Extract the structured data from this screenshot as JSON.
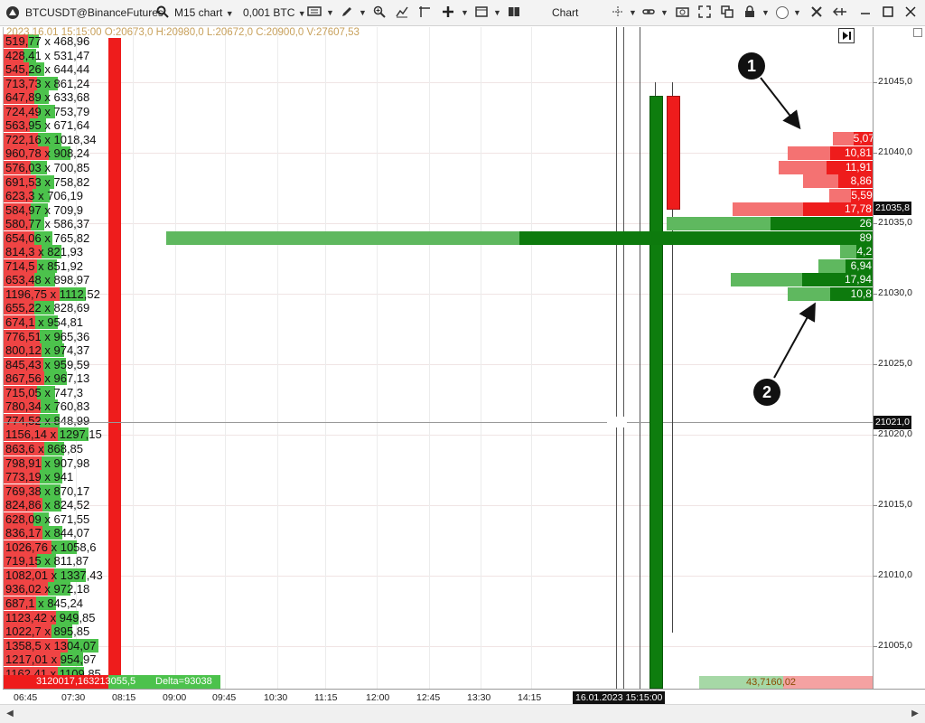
{
  "toolbar": {
    "symbol": "BTCUSDT@BinanceFutures",
    "timeframe": "M15 chart",
    "volume_step": "0,001 BTC",
    "title": "Chart"
  },
  "info_line": "2023.16.01 15:15:00 O:20673,0 H:20980,0 L:20672,0 C:20900,0 V:27607,53",
  "vertical_volume_rows": [
    {
      "label": "519,77 x 468,96",
      "red": 519.77,
      "green": 468.96
    },
    {
      "label": "428,41 x 531,47",
      "red": 428.41,
      "green": 531.47
    },
    {
      "label": "545,26 x 644,44",
      "red": 545.26,
      "green": 644.44
    },
    {
      "label": "713,73 x 861,24",
      "red": 713.73,
      "green": 861.24
    },
    {
      "label": "647,89 x 633,68",
      "red": 647.89,
      "green": 633.68
    },
    {
      "label": "724,49 x 753,79",
      "red": 724.49,
      "green": 753.79
    },
    {
      "label": "563,95 x 671,64",
      "red": 563.95,
      "green": 671.64
    },
    {
      "label": "722,16 x 1018,34",
      "red": 722.16,
      "green": 1018.34
    },
    {
      "label": "960,78 x 908,24",
      "red": 960.78,
      "green": 908.24
    },
    {
      "label": "576,03 x 700,85",
      "red": 576.03,
      "green": 700.85
    },
    {
      "label": "691,53 x 758,82",
      "red": 691.53,
      "green": 758.82
    },
    {
      "label": "623,3 x 706,19",
      "red": 623.3,
      "green": 706.19
    },
    {
      "label": "584,97 x 709,9",
      "red": 584.97,
      "green": 709.9
    },
    {
      "label": "580,77 x 586,37",
      "red": 580.77,
      "green": 586.37
    },
    {
      "label": "654,06 x 765,82",
      "red": 654.06,
      "green": 765.82
    },
    {
      "label": "814,3 x 821,93",
      "red": 814.3,
      "green": 821.93
    },
    {
      "label": "714,5 x 851,92",
      "red": 714.5,
      "green": 851.92
    },
    {
      "label": "653,48 x 898,97",
      "red": 653.48,
      "green": 898.97
    },
    {
      "label": "1196,75 x 1112,52",
      "red": 1196.75,
      "green": 1112.52
    },
    {
      "label": "655,22 x 828,69",
      "red": 655.22,
      "green": 828.69
    },
    {
      "label": "674,1 x 954,81",
      "red": 674.1,
      "green": 954.81
    },
    {
      "label": "776,51 x 965,36",
      "red": 776.51,
      "green": 965.36
    },
    {
      "label": "800,12 x 974,37",
      "red": 800.12,
      "green": 974.37
    },
    {
      "label": "845,43 x 959,59",
      "red": 845.43,
      "green": 959.59
    },
    {
      "label": "867,56 x 967,13",
      "red": 867.56,
      "green": 967.13
    },
    {
      "label": "715,05 x 747,3",
      "red": 715.05,
      "green": 747.3
    },
    {
      "label": "780,34 x 760,83",
      "red": 780.34,
      "green": 760.83
    },
    {
      "label": "774,52 x 848,99",
      "red": 774.52,
      "green": 848.99
    },
    {
      "label": "1156,14 x 1297,15",
      "red": 1156.14,
      "green": 1297.15
    },
    {
      "label": "863,6 x 868,85",
      "red": 863.6,
      "green": 868.85
    },
    {
      "label": "798,91 x 907,98",
      "red": 798.91,
      "green": 907.98
    },
    {
      "label": "773,19 x 941",
      "red": 773.19,
      "green": 941
    },
    {
      "label": "769,38 x 870,17",
      "red": 769.38,
      "green": 870.17
    },
    {
      "label": "824,86 x 824,52",
      "red": 824.86,
      "green": 824.52
    },
    {
      "label": "628,09 x 671,55",
      "red": 628.09,
      "green": 671.55
    },
    {
      "label": "836,17 x 844,07",
      "red": 836.17,
      "green": 844.07
    },
    {
      "label": "1026,76 x 1058,6",
      "red": 1026.76,
      "green": 1058.6
    },
    {
      "label": "719,15 x 811,87",
      "red": 719.15,
      "green": 811.87
    },
    {
      "label": "1082,01 x 1337,43",
      "red": 1082.01,
      "green": 1337.43
    },
    {
      "label": "936,02 x 972,18",
      "red": 936.02,
      "green": 972.18
    },
    {
      "label": "687,1 x 845,24",
      "red": 687.1,
      "green": 845.24
    },
    {
      "label": "1123,42 x 949,85",
      "red": 1123.42,
      "green": 949.85
    },
    {
      "label": "1022,7 x 895,85",
      "red": 1022.7,
      "green": 895.85
    },
    {
      "label": "1358,5 x 1304,07",
      "red": 1358.5,
      "green": 1304.07
    },
    {
      "label": "1217,01 x 954,97",
      "red": 1217.01,
      "green": 954.97
    },
    {
      "label": "1162,41 x 1109,85",
      "red": 1162.41,
      "green": 1109.85
    }
  ],
  "bottom_strip": {
    "totals_label": "3120017,163213055,5",
    "delta_label": "Delta=93038",
    "right_label": "43,7160,02"
  },
  "footprint_bars": [
    {
      "price": 21041,
      "value": "5,07",
      "side": "sell"
    },
    {
      "price": 21040,
      "value": "10,81",
      "side": "sell"
    },
    {
      "price": 21039,
      "value": "11,91",
      "side": "sell"
    },
    {
      "price": 21038,
      "value": "8,86",
      "side": "sell"
    },
    {
      "price": 21037,
      "value": "5,59",
      "side": "sell"
    },
    {
      "price": 21036,
      "value": "17,78",
      "side": "sell"
    },
    {
      "price": 21035,
      "value": "26",
      "side": "buy"
    },
    {
      "price": 21034,
      "value": "89",
      "side": "buy"
    },
    {
      "price": 21033,
      "value": "4,21",
      "side": "buy"
    },
    {
      "price": 21032,
      "value": "6,94",
      "side": "buy"
    },
    {
      "price": 21031,
      "value": "17,94",
      "side": "buy"
    },
    {
      "price": 21030,
      "value": "10,8",
      "side": "buy"
    }
  ],
  "price_axis": {
    "labels": [
      "21045,0",
      "21040,0",
      "21035,0",
      "21030,0",
      "21025,0",
      "21020,0",
      "21015,0",
      "21010,0",
      "21005,0"
    ],
    "last_price_badge": "21035,8",
    "crosshair_badge": "21021,0"
  },
  "time_axis": {
    "labels": [
      "06:45",
      "07:30",
      "08:15",
      "09:00",
      "09:45",
      "10:30",
      "11:15",
      "12:00",
      "12:45",
      "13:30",
      "14:15"
    ],
    "crosshair_badge": "16.01.2023 15:15:00"
  },
  "callouts": [
    "1",
    "2"
  ],
  "colors": {
    "sell_dark": "#ee1c1c",
    "sell_light": "#f47272",
    "buy_dark": "#0d7a0d",
    "buy_light": "#5fb85f",
    "volume_green": "#4cc24c",
    "volume_red": "#ef4444",
    "info_text": "#c8a15c"
  }
}
